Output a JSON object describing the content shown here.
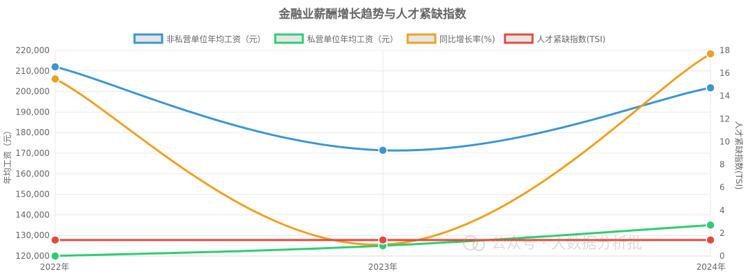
{
  "chart_data": {
    "type": "line",
    "title": "金融业薪酬增长趋势与人才紧缺指数",
    "categories": [
      "2022年",
      "2023年",
      "2024年"
    ],
    "series": [
      {
        "name": "非私营单位年均工资（元）",
        "axis": "left",
        "color": "#3a95d3",
        "values": [
          212000,
          171400,
          201800
        ]
      },
      {
        "name": "私营单位年均工资（元）",
        "axis": "left",
        "color": "#2ecc71",
        "values": [
          120000,
          125000,
          135000
        ]
      },
      {
        "name": "同比增长率(%)",
        "axis": "right",
        "color": "#f0a020",
        "values": [
          15.5,
          1.0,
          17.7
        ]
      },
      {
        "name": "人才紧缺指数(TSI)",
        "axis": "right",
        "color": "#e04b3f",
        "values": [
          1.4,
          1.4,
          1.4
        ]
      }
    ],
    "y_left": {
      "label": "年均工资（元）",
      "min": 120000,
      "max": 220000,
      "step": 10000
    },
    "y_right": {
      "label": "人才紧缺指数(TSI)",
      "min": 0,
      "max": 18,
      "step": 2
    },
    "legend_position": "top",
    "grid": true
  },
  "watermark": "公众号 · 大数据分析批"
}
